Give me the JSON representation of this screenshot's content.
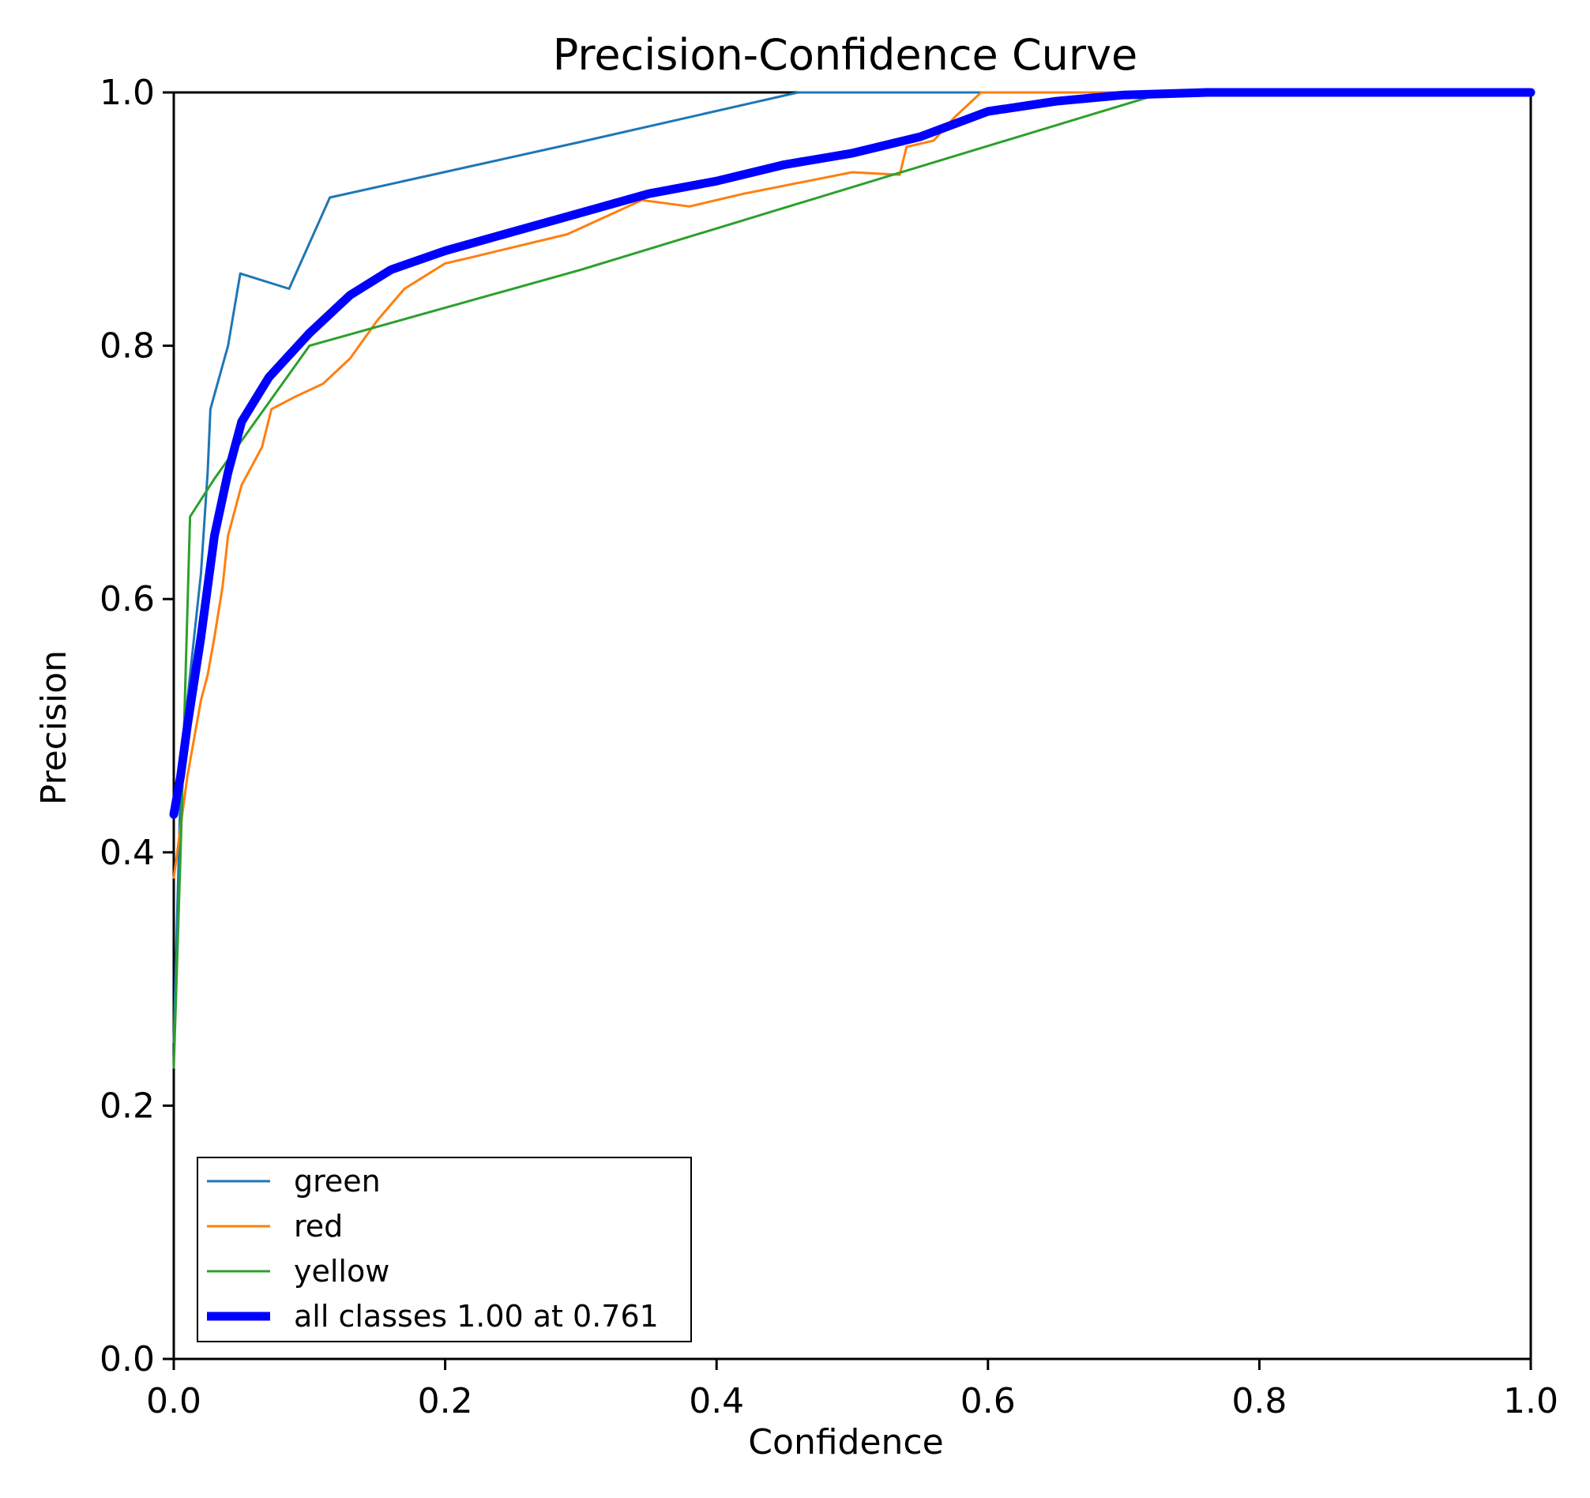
{
  "chart_data": {
    "type": "line",
    "title": "Precision-Confidence Curve",
    "xlabel": "Confidence",
    "ylabel": "Precision",
    "xlim": [
      0.0,
      1.0
    ],
    "ylim": [
      0.0,
      1.0
    ],
    "xticks": [
      "0.0",
      "0.2",
      "0.4",
      "0.6",
      "0.8",
      "1.0"
    ],
    "yticks": [
      "0.0",
      "0.2",
      "0.4",
      "0.6",
      "0.8",
      "1.0"
    ],
    "grid": false,
    "legend_position": "lower-left",
    "series": [
      {
        "name": "green",
        "color": "#1f77b4",
        "points": [
          [
            0.0,
            0.25
          ],
          [
            0.005,
            0.45
          ],
          [
            0.01,
            0.52
          ],
          [
            0.02,
            0.62
          ],
          [
            0.025,
            0.7
          ],
          [
            0.027,
            0.75
          ],
          [
            0.04,
            0.8
          ],
          [
            0.049,
            0.857
          ],
          [
            0.085,
            0.845
          ],
          [
            0.115,
            0.917
          ],
          [
            0.3,
            0.961
          ],
          [
            0.46,
            1.0
          ],
          [
            1.0,
            1.0
          ]
        ]
      },
      {
        "name": "red",
        "color": "#ff7f0e",
        "points": [
          [
            0.0,
            0.38
          ],
          [
            0.01,
            0.46
          ],
          [
            0.02,
            0.52
          ],
          [
            0.025,
            0.54
          ],
          [
            0.03,
            0.57
          ],
          [
            0.036,
            0.61
          ],
          [
            0.04,
            0.65
          ],
          [
            0.05,
            0.69
          ],
          [
            0.06,
            0.71
          ],
          [
            0.065,
            0.72
          ],
          [
            0.072,
            0.75
          ],
          [
            0.09,
            0.76
          ],
          [
            0.11,
            0.77
          ],
          [
            0.13,
            0.79
          ],
          [
            0.15,
            0.82
          ],
          [
            0.17,
            0.845
          ],
          [
            0.2,
            0.865
          ],
          [
            0.22,
            0.87
          ],
          [
            0.29,
            0.888
          ],
          [
            0.345,
            0.915
          ],
          [
            0.38,
            0.91
          ],
          [
            0.42,
            0.92
          ],
          [
            0.5,
            0.937
          ],
          [
            0.535,
            0.935
          ],
          [
            0.54,
            0.957
          ],
          [
            0.56,
            0.962
          ],
          [
            0.575,
            0.98
          ],
          [
            0.595,
            1.0
          ],
          [
            1.0,
            1.0
          ]
        ]
      },
      {
        "name": "yellow",
        "color": "#2ca02c",
        "points": [
          [
            0.0,
            0.23
          ],
          [
            0.005,
            0.4
          ],
          [
            0.012,
            0.665
          ],
          [
            0.03,
            0.695
          ],
          [
            0.1,
            0.8
          ],
          [
            0.3,
            0.86
          ],
          [
            0.53,
            0.935
          ],
          [
            0.73,
            1.0
          ],
          [
            1.0,
            1.0
          ]
        ]
      },
      {
        "name": "all classes 1.00 at 0.761",
        "color": "#0000ff",
        "points": [
          [
            0.0,
            0.43
          ],
          [
            0.005,
            0.46
          ],
          [
            0.01,
            0.5
          ],
          [
            0.02,
            0.57
          ],
          [
            0.03,
            0.65
          ],
          [
            0.04,
            0.7
          ],
          [
            0.05,
            0.74
          ],
          [
            0.07,
            0.775
          ],
          [
            0.1,
            0.81
          ],
          [
            0.13,
            0.84
          ],
          [
            0.16,
            0.86
          ],
          [
            0.2,
            0.875
          ],
          [
            0.25,
            0.89
          ],
          [
            0.3,
            0.905
          ],
          [
            0.35,
            0.92
          ],
          [
            0.4,
            0.93
          ],
          [
            0.45,
            0.943
          ],
          [
            0.5,
            0.952
          ],
          [
            0.55,
            0.965
          ],
          [
            0.6,
            0.985
          ],
          [
            0.65,
            0.993
          ],
          [
            0.7,
            0.998
          ],
          [
            0.761,
            1.0
          ],
          [
            1.0,
            1.0
          ]
        ]
      }
    ]
  }
}
